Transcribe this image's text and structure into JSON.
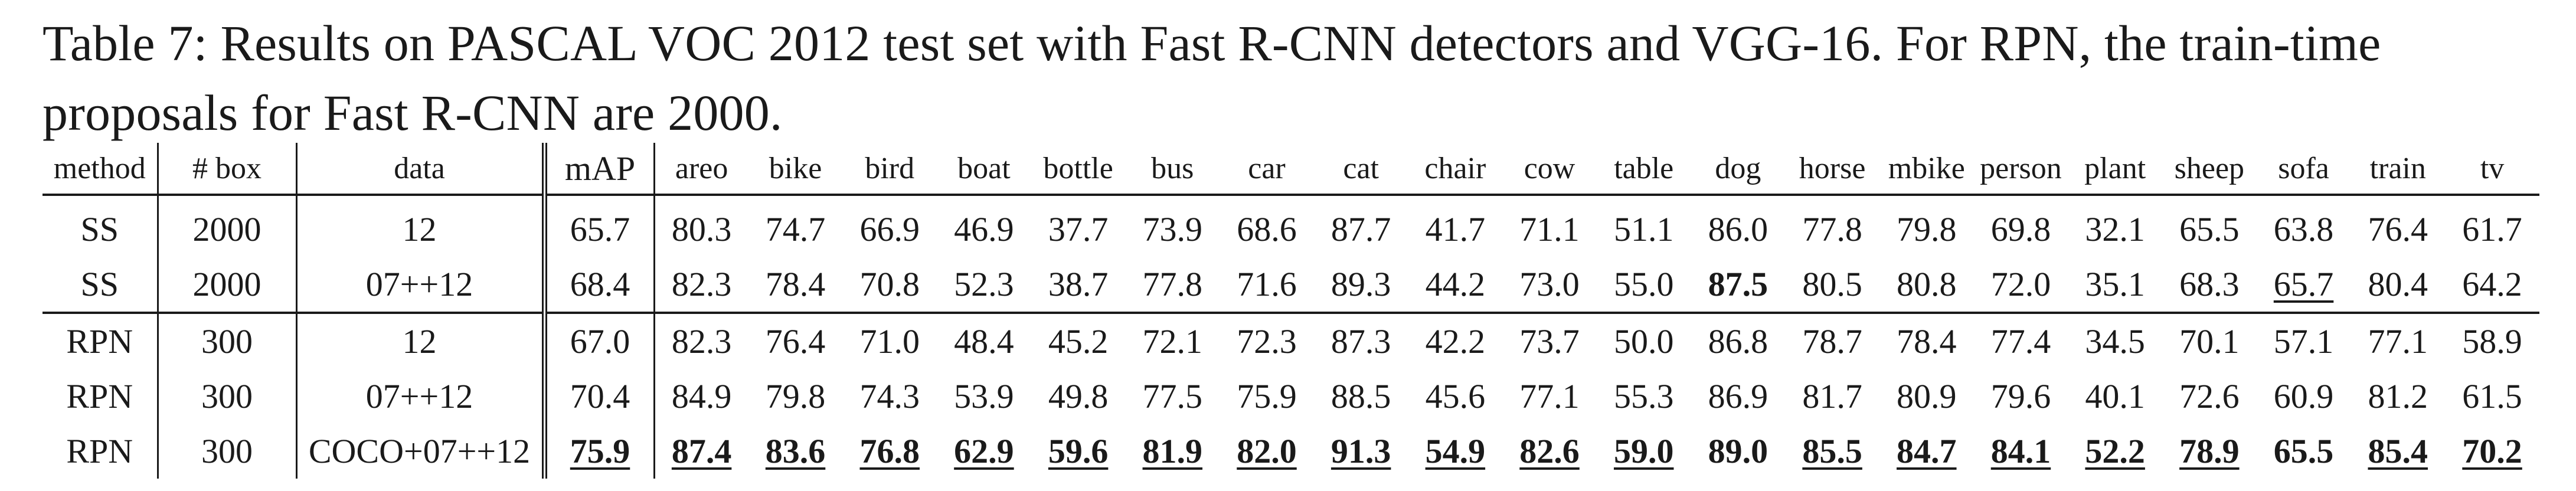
{
  "caption": {
    "line1": "Table 7: Results on PASCAL VOC 2012 test set with Fast R-CNN detectors and VGG-16. For RPN, the train-time",
    "line2": "proposals for Fast R-CNN are 2000."
  },
  "headers": {
    "method": "method",
    "box": "# box",
    "data": "data",
    "map": "mAP",
    "classes": [
      "areo",
      "bike",
      "bird",
      "boat",
      "bottle",
      "bus",
      "car",
      "cat",
      "chair",
      "cow",
      "table",
      "dog",
      "horse",
      "mbike",
      "person",
      "plant",
      "sheep",
      "sofa",
      "train",
      "tv"
    ]
  },
  "rows": [
    {
      "method": "SS",
      "box": "2000",
      "data": "12",
      "map": "65.7",
      "values": [
        "80.3",
        "74.7",
        "66.9",
        "46.9",
        "37.7",
        "73.9",
        "68.6",
        "87.7",
        "41.7",
        "71.1",
        "51.1",
        "86.0",
        "77.8",
        "79.8",
        "69.8",
        "32.1",
        "65.5",
        "63.8",
        "76.4",
        "61.7"
      ]
    },
    {
      "method": "SS",
      "box": "2000",
      "data": "07++12",
      "map": "68.4",
      "values": [
        "82.3",
        "78.4",
        "70.8",
        "52.3",
        "38.7",
        "77.8",
        "71.6",
        "89.3",
        "44.2",
        "73.0",
        "55.0",
        "87.5",
        "80.5",
        "80.8",
        "72.0",
        "35.1",
        "68.3",
        "65.7",
        "80.4",
        "64.2"
      ]
    },
    {
      "method": "RPN",
      "box": "300",
      "data": "12",
      "map": "67.0",
      "values": [
        "82.3",
        "76.4",
        "71.0",
        "48.4",
        "45.2",
        "72.1",
        "72.3",
        "87.3",
        "42.2",
        "73.7",
        "50.0",
        "86.8",
        "78.7",
        "78.4",
        "77.4",
        "34.5",
        "70.1",
        "57.1",
        "77.1",
        "58.9"
      ]
    },
    {
      "method": "RPN",
      "box": "300",
      "data": "07++12",
      "map": "70.4",
      "values": [
        "84.9",
        "79.8",
        "74.3",
        "53.9",
        "49.8",
        "77.5",
        "75.9",
        "88.5",
        "45.6",
        "77.1",
        "55.3",
        "86.9",
        "81.7",
        "80.9",
        "79.6",
        "40.1",
        "72.6",
        "60.9",
        "81.2",
        "61.5"
      ]
    },
    {
      "method": "RPN",
      "box": "300",
      "data": "COCO+07++12",
      "map": "75.9",
      "values": [
        "87.4",
        "83.6",
        "76.8",
        "62.9",
        "59.6",
        "81.9",
        "82.0",
        "91.3",
        "54.9",
        "82.6",
        "59.0",
        "89.0",
        "85.5",
        "84.7",
        "84.1",
        "52.2",
        "78.9",
        "65.5",
        "85.4",
        "70.2"
      ]
    }
  ],
  "emphasis": {
    "bold": [
      "1.11",
      "4.map",
      "4.0",
      "4.1",
      "4.2",
      "4.3",
      "4.4",
      "4.5",
      "4.6",
      "4.7",
      "4.8",
      "4.9",
      "4.10",
      "4.11",
      "4.12",
      "4.13",
      "4.14",
      "4.15",
      "4.16",
      "4.17",
      "4.18",
      "4.19"
    ],
    "underline": [
      "1.17",
      "4.map",
      "4.0",
      "4.1",
      "4.2",
      "4.3",
      "4.4",
      "4.5",
      "4.6",
      "4.7",
      "4.8",
      "4.9",
      "4.10",
      "4.12",
      "4.13",
      "4.14",
      "4.15",
      "4.16",
      "4.18",
      "4.19"
    ]
  }
}
